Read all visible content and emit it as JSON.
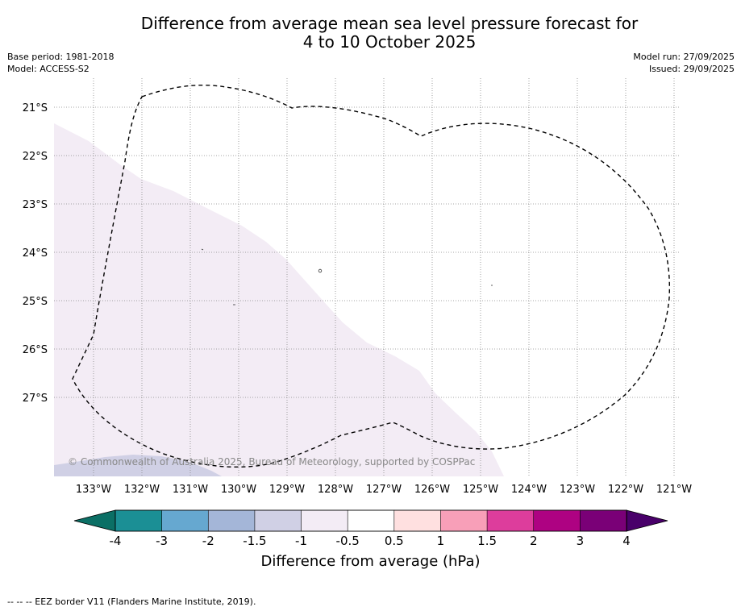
{
  "title_line1": "Difference from average mean sea level pressure forecast for",
  "title_line2": "4 to 10 October 2025",
  "base_period": "Base period: 1981-2018",
  "model": "Model: ACCESS-S2",
  "model_run": "Model run: 27/09/2025",
  "issued": "Issued: 29/09/2025",
  "copyright": "© Commonwealth of Australia 2025, Bureau of Meteorology, supported by COSPPac",
  "lat_labels": [
    "21°S",
    "22°S",
    "23°S",
    "24°S",
    "25°S",
    "26°S",
    "27°S"
  ],
  "lon_labels": [
    "133°W",
    "132°W",
    "131°W",
    "130°W",
    "129°W",
    "128°W",
    "127°W",
    "126°W",
    "125°W",
    "124°W",
    "123°W",
    "122°W",
    "121°W"
  ],
  "colorbar": {
    "ticks": [
      "-4",
      "-3",
      "-2",
      "-1.5",
      "-1",
      "-0.5",
      "0.5",
      "1",
      "1.5",
      "2",
      "3",
      "4"
    ],
    "colors": [
      "#1b8f95",
      "#66a8d0",
      "#a4b6d8",
      "#d0d0e5",
      "#f3ecf5",
      "#ffffff",
      "#ffe0e0",
      "#f89fb8",
      "#dd3d9c",
      "#ae0282",
      "#7a0077"
    ],
    "low_extend_color": "#0b6f65",
    "high_extend_color": "#49006a",
    "label": "Difference from average (hPa)"
  },
  "footnote": "--  --  -- EEZ border V11 (Flanders Marine Institute, 2019)."
}
